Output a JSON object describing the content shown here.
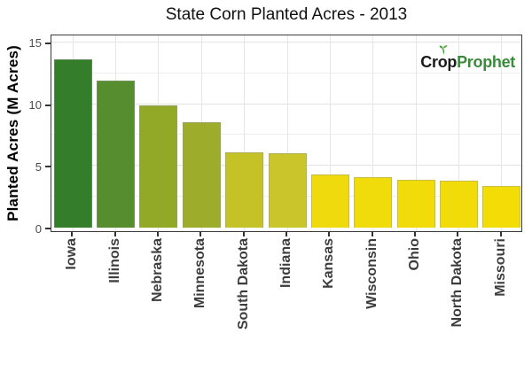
{
  "title": "State Corn Planted Acres - 2013",
  "logo": {
    "part1_pre": "Cr",
    "part1_o": "o",
    "part1_post": "p",
    "part2": "Prophet",
    "dark_color": "#1b1b1b",
    "green_color": "#3a8a3c",
    "sprout_color": "#4a9e3f"
  },
  "chart_data": {
    "type": "bar",
    "title": "State Corn Planted Acres - 2013",
    "xlabel": "",
    "ylabel": "Planted Acres (M Acres)",
    "categories": [
      "Iowa",
      "Illinois",
      "Nebraska",
      "Minnesota",
      "South Dakota",
      "Indiana",
      "Kansas",
      "Wisconsin",
      "Ohio",
      "North Dakota",
      "Missouri"
    ],
    "values": [
      13.6,
      11.9,
      9.9,
      8.5,
      6.1,
      6.0,
      4.3,
      4.1,
      3.9,
      3.8,
      3.4
    ],
    "bar_colors": [
      "#337d2b",
      "#568e2f",
      "#92a928",
      "#9dad2b",
      "#c4c226",
      "#c9c52a",
      "#efdb0d",
      "#f0dc0a",
      "#f1dc09",
      "#f1dc09",
      "#f3dd07"
    ],
    "unit": "M Acres",
    "yticks": [
      0,
      5,
      10,
      15
    ],
    "ytick_labels": [
      "0",
      "5",
      "10",
      "15"
    ],
    "minor_gridlines": [
      2.5,
      7.5,
      12.5
    ],
    "ylim": [
      0,
      15.6
    ],
    "grid": "on",
    "legend": "none",
    "bar_orientation": "vertical",
    "x_label_rotation_deg": 90
  }
}
